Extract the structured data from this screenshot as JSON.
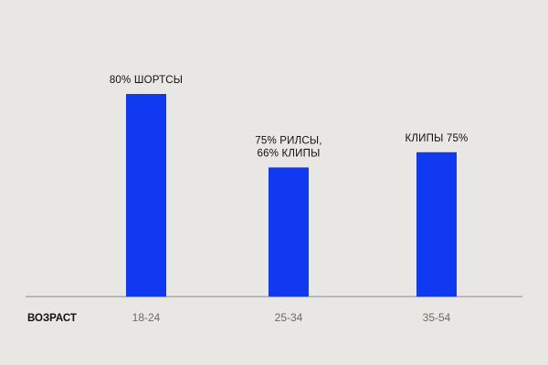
{
  "chart_data": {
    "type": "bar",
    "xlabel": "ВОЗРАСТ",
    "categories": [
      "18-24",
      "25-34",
      "35-54"
    ],
    "values": [
      80,
      51,
      57
    ],
    "annotations": [
      [
        "80% ШОРТСЫ"
      ],
      [
        "75% РИЛСЫ,",
        "66% КЛИПЫ"
      ],
      [
        "КЛИПЫ 75%"
      ]
    ],
    "ylim": [
      0,
      100
    ],
    "bar_color": "#1239f2",
    "axis_color": "#8a8a8a",
    "grid": false,
    "legend": "none"
  }
}
